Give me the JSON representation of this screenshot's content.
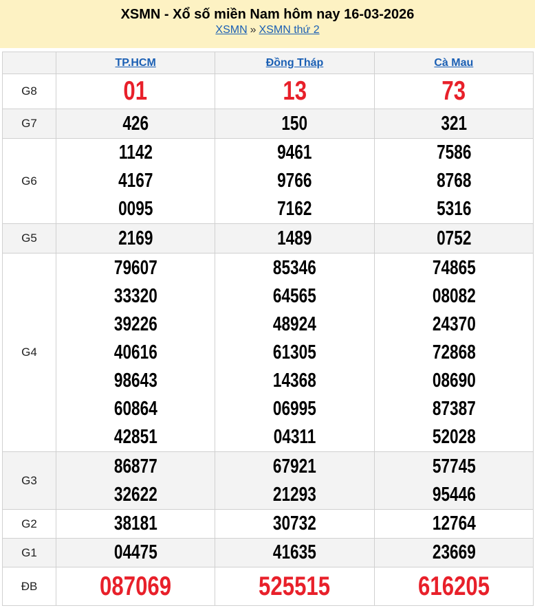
{
  "header": {
    "title": "XSMN - Xổ số miền Nam hôm nay 16-03-2026",
    "breadcrumb": [
      {
        "label": "XSMN"
      },
      {
        "label": "XSMN thứ 2"
      }
    ],
    "separator": "»",
    "background": "#fdf2c3"
  },
  "table": {
    "provinces": [
      "TP.HCM",
      "Đồng Tháp",
      "Cà Mau"
    ],
    "accent_red": "#e8202a",
    "rows": [
      {
        "label": "G8",
        "values": [
          [
            "01"
          ],
          [
            "13"
          ],
          [
            "73"
          ]
        ],
        "highlight": true
      },
      {
        "label": "G7",
        "values": [
          [
            "426"
          ],
          [
            "150"
          ],
          [
            "321"
          ]
        ]
      },
      {
        "label": "G6",
        "values": [
          [
            "1142",
            "4167",
            "0095"
          ],
          [
            "9461",
            "9766",
            "7162"
          ],
          [
            "7586",
            "8768",
            "5316"
          ]
        ]
      },
      {
        "label": "G5",
        "values": [
          [
            "2169"
          ],
          [
            "1489"
          ],
          [
            "0752"
          ]
        ]
      },
      {
        "label": "G4",
        "values": [
          [
            "79607",
            "33320",
            "39226",
            "40616",
            "98643",
            "60864",
            "42851"
          ],
          [
            "85346",
            "64565",
            "48924",
            "61305",
            "14368",
            "06995",
            "04311"
          ],
          [
            "74865",
            "08082",
            "24370",
            "72868",
            "08690",
            "87387",
            "52028"
          ]
        ]
      },
      {
        "label": "G3",
        "values": [
          [
            "86877",
            "32622"
          ],
          [
            "67921",
            "21293"
          ],
          [
            "57745",
            "95446"
          ]
        ]
      },
      {
        "label": "G2",
        "values": [
          [
            "38181"
          ],
          [
            "30732"
          ],
          [
            "12764"
          ]
        ]
      },
      {
        "label": "G1",
        "values": [
          [
            "04475"
          ],
          [
            "41635"
          ],
          [
            "23669"
          ]
        ]
      },
      {
        "label": "ĐB",
        "values": [
          [
            "087069"
          ],
          [
            "525515"
          ],
          [
            "616205"
          ]
        ],
        "highlight": true
      }
    ]
  }
}
